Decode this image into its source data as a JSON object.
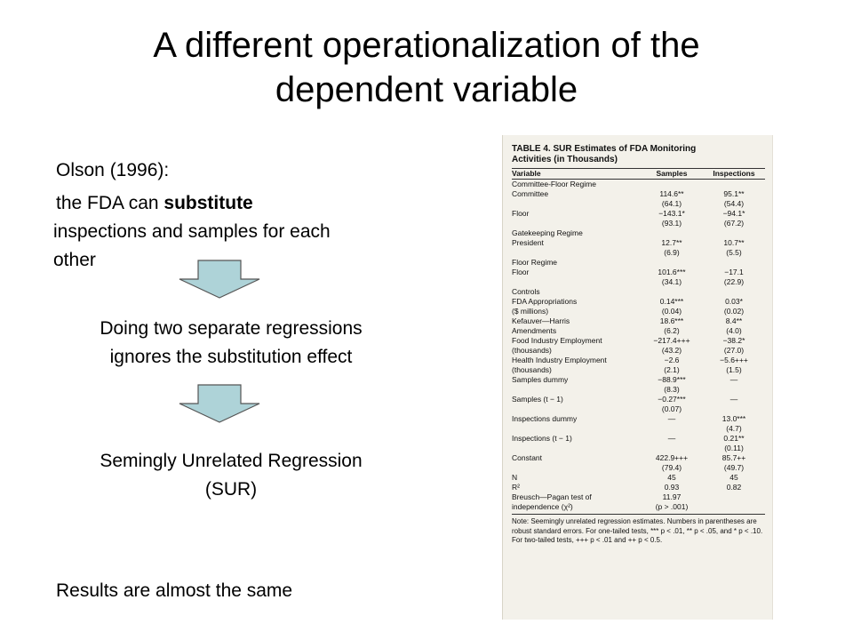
{
  "slide": {
    "title_line1": "A different operationalization of the",
    "title_line2": "dependent variable",
    "citation": "Olson (1996):",
    "substitute_prefix": "the FDA can ",
    "substitute_bold": "substitute",
    "substitute_line2": "inspections and samples for each",
    "substitute_line3": "other",
    "step2_line1": "Doing two separate regressions",
    "step2_line2": "ignores the substitution effect",
    "step3_line1": "Semingly Unrelated Regression",
    "step3_line2": "(SUR)",
    "conclusion": "Results are almost the same",
    "arrow_color": "#aed3d8",
    "arrow_stroke": "#555555"
  },
  "table": {
    "title_line1": "TABLE 4.   SUR Estimates of FDA Monitoring",
    "title_line2": "Activities (in Thousands)",
    "headers": [
      "Variable",
      "Samples",
      "Inspections"
    ],
    "rows": [
      [
        "Committee-Floor Regime",
        "",
        ""
      ],
      [
        "   Committee",
        "114.6**",
        "95.1**"
      ],
      [
        "",
        "(64.1)",
        "(54.4)"
      ],
      [
        "   Floor",
        "−143.1*",
        "−94.1*"
      ],
      [
        "",
        "(93.1)",
        "(67.2)"
      ],
      [
        "Gatekeeping Regime",
        "",
        ""
      ],
      [
        "   President",
        "12.7**",
        "10.7**"
      ],
      [
        "",
        "(6.9)",
        "(5.5)"
      ],
      [
        "Floor Regime",
        "",
        ""
      ],
      [
        "   Floor",
        "101.6***",
        "−17.1"
      ],
      [
        "",
        "(34.1)",
        "(22.9)"
      ],
      [
        "Controls",
        "",
        ""
      ],
      [
        "   FDA Appropriations",
        "0.14***",
        "0.03*"
      ],
      [
        "      ($ millions)",
        "(0.04)",
        "(0.02)"
      ],
      [
        "   Kefauver—Harris",
        "18.6***",
        "8.4**"
      ],
      [
        "      Amendments",
        "(6.2)",
        "(4.0)"
      ],
      [
        "   Food Industry Employment",
        "−217.4+++",
        "−38.2*"
      ],
      [
        "      (thousands)",
        "(43.2)",
        "(27.0)"
      ],
      [
        "   Health Industry Employment",
        "−2.6",
        "−5.6+++"
      ],
      [
        "      (thousands)",
        "(2.1)",
        "(1.5)"
      ],
      [
        "   Samples dummy",
        "−88.9***",
        "—"
      ],
      [
        "",
        "(8.3)",
        ""
      ],
      [
        "   Samples (t − 1)",
        "−0.27***",
        "—"
      ],
      [
        "",
        "(0.07)",
        ""
      ],
      [
        "   Inspections dummy",
        "—",
        "13.0***"
      ],
      [
        "",
        "",
        "(4.7)"
      ],
      [
        "   Inspections (t − 1)",
        "—",
        "0.21**"
      ],
      [
        "",
        "",
        "(0.11)"
      ],
      [
        "   Constant",
        "422.9+++",
        "85.7++"
      ],
      [
        "",
        "(79.4)",
        "(49.7)"
      ],
      [
        "      N",
        "45",
        "45"
      ],
      [
        "      R²",
        "0.93",
        "0.82"
      ],
      [
        "      Breusch—Pagan test of",
        "11.97",
        ""
      ],
      [
        "      independence (χ²)",
        "(p > .001)",
        ""
      ]
    ],
    "note": "Note: Seemingly unrelated regression estimates. Numbers in parentheses are robust standard errors. For one-tailed tests, *** p < .01, ** p < .05, and * p < .10. For two-tailed tests, +++ p < .01 and ++ p < 0.5."
  }
}
